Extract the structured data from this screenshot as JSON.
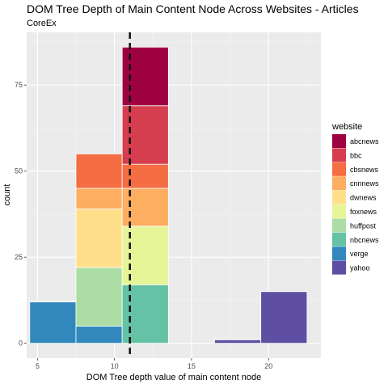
{
  "chart_data": {
    "type": "bar",
    "subtype": "stacked-histogram",
    "title": "DOM Tree Depth of Main Content Node Across Websites - Articles",
    "subtitle": "CoreEx",
    "xlabel": "DOM Tree depth value of main content node",
    "ylabel": "count",
    "xlim": [
      4.3,
      23.4
    ],
    "ylim": [
      -4.3,
      90.3
    ],
    "x_ticks": [
      5,
      10,
      15,
      20
    ],
    "y_ticks": [
      0,
      25,
      50,
      75
    ],
    "grid": true,
    "legend_position": "right",
    "legend_title": "website",
    "vline": {
      "x": 11,
      "style": "dashed"
    },
    "series": [
      {
        "name": "abcnews",
        "color": "#9E0142"
      },
      {
        "name": "bbc",
        "color": "#D53E4F"
      },
      {
        "name": "cbsnews",
        "color": "#F46D43"
      },
      {
        "name": "cnnnews",
        "color": "#FDAE61"
      },
      {
        "name": "dwnews",
        "color": "#FEE08B"
      },
      {
        "name": "foxnews",
        "color": "#E6F598"
      },
      {
        "name": "huffpost",
        "color": "#ABDDA4"
      },
      {
        "name": "nbcnews",
        "color": "#66C2A5"
      },
      {
        "name": "verge",
        "color": "#3288BD"
      },
      {
        "name": "yahoo",
        "color": "#5E4FA2"
      }
    ],
    "bins": [
      {
        "start": 4.5,
        "end": 7.5,
        "segments": [
          {
            "series": "verge",
            "value": 12
          }
        ]
      },
      {
        "start": 7.5,
        "end": 10.5,
        "segments": [
          {
            "series": "verge",
            "value": 5
          },
          {
            "series": "huffpost",
            "value": 17
          },
          {
            "series": "dwnews",
            "value": 17
          },
          {
            "series": "cnnnews",
            "value": 6
          },
          {
            "series": "cbsnews",
            "value": 10
          }
        ]
      },
      {
        "start": 10.5,
        "end": 13.5,
        "segments": [
          {
            "series": "nbcnews",
            "value": 17
          },
          {
            "series": "foxnews",
            "value": 17
          },
          {
            "series": "cnnnews",
            "value": 11
          },
          {
            "series": "cbsnews",
            "value": 7
          },
          {
            "series": "bbc",
            "value": 17
          },
          {
            "series": "abcnews",
            "value": 17
          }
        ]
      },
      {
        "start": 13.5,
        "end": 16.5,
        "segments": []
      },
      {
        "start": 16.5,
        "end": 19.5,
        "segments": [
          {
            "series": "yahoo",
            "value": 1
          }
        ]
      },
      {
        "start": 19.5,
        "end": 22.5,
        "segments": [
          {
            "series": "yahoo",
            "value": 15
          }
        ]
      }
    ]
  }
}
